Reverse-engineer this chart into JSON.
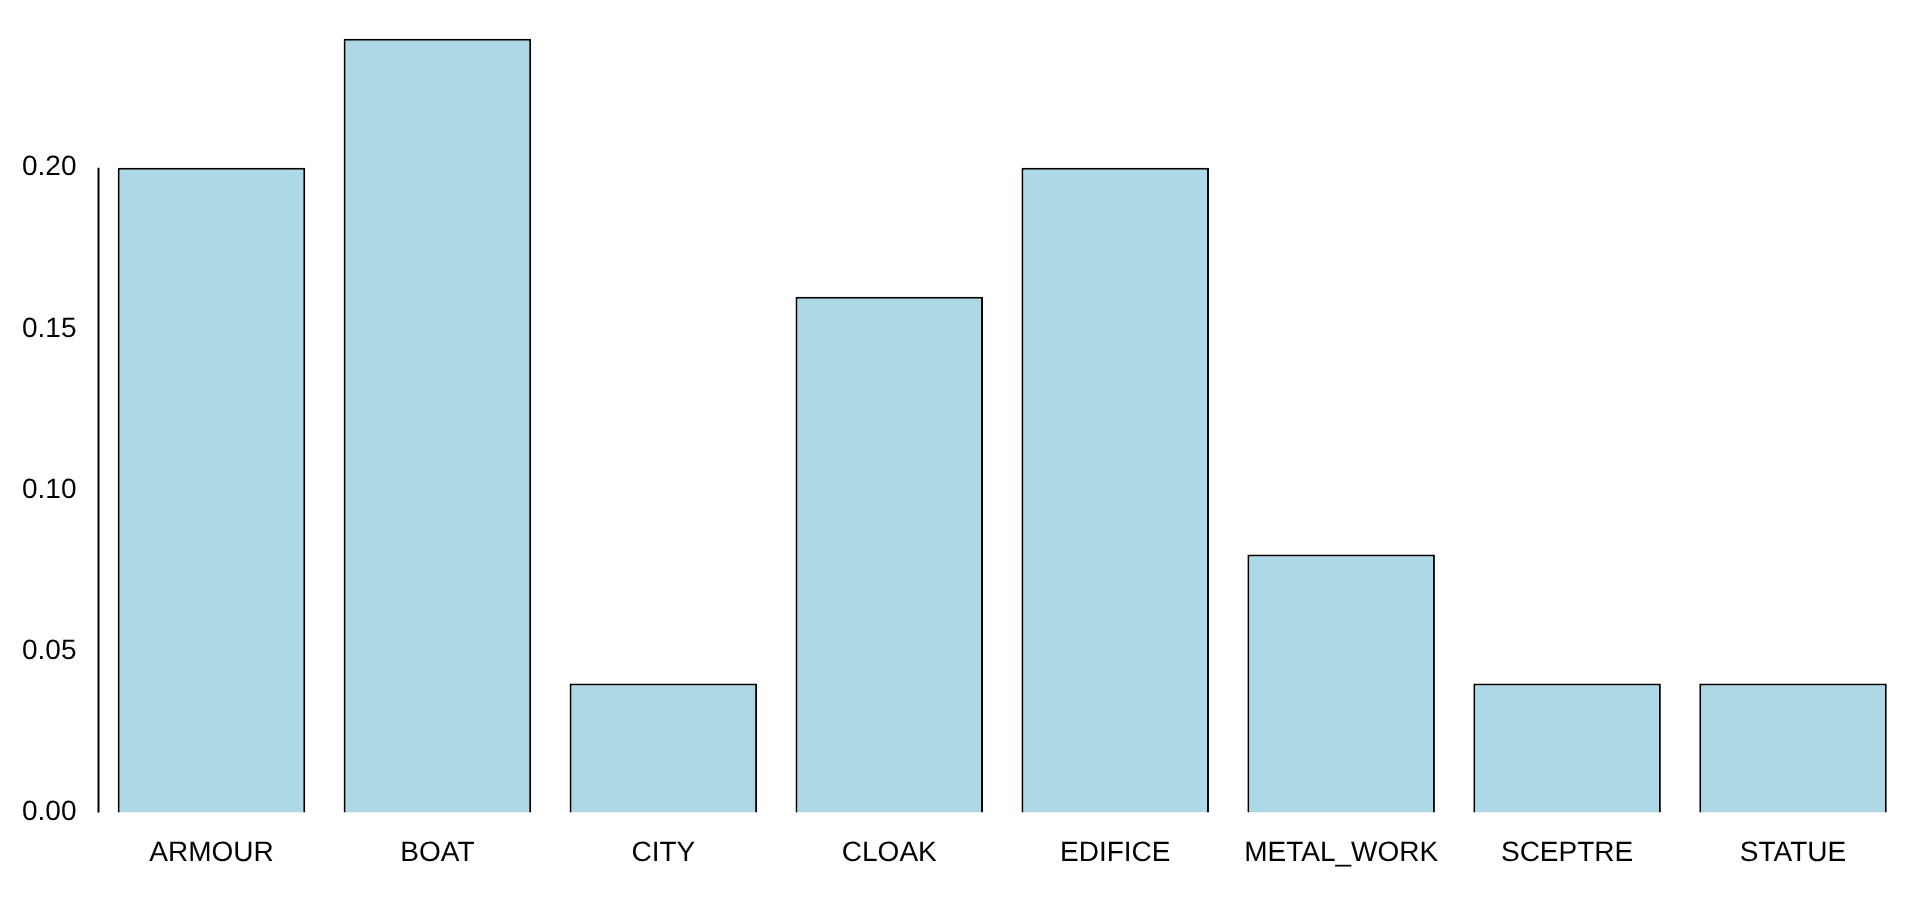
{
  "chart_data": {
    "type": "bar",
    "categories": [
      "ARMOUR",
      "BOAT",
      "CITY",
      "CLOAK",
      "EDIFICE",
      "METAL_WORK",
      "SCEPTRE",
      "STATUE"
    ],
    "values": [
      0.2,
      0.24,
      0.04,
      0.16,
      0.2,
      0.08,
      0.04,
      0.04
    ],
    "color": "#add8e6",
    "ylim": [
      0,
      0.24
    ],
    "yticks": [
      {
        "value": 0,
        "label": "0.00"
      },
      {
        "value": 0.05,
        "label": "0.05"
      },
      {
        "value": 0.1,
        "label": "0.10"
      },
      {
        "value": 0.15,
        "label": "0.15"
      },
      {
        "value": 0.2,
        "label": "0.20"
      }
    ],
    "grid": false
  }
}
